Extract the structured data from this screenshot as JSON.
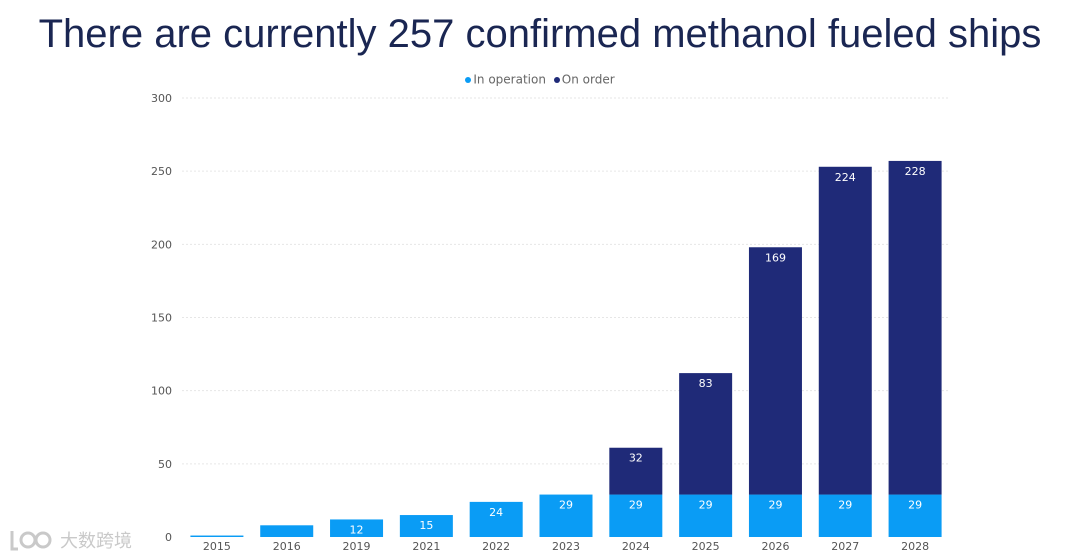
{
  "title": "There are currently 257 confirmed methanol fueled ships",
  "colors": {
    "in_operation": "#0a9cf5",
    "on_order": "#1f2a78"
  },
  "chart_data": {
    "type": "bar",
    "stacked": true,
    "categories": [
      "2015",
      "2016",
      "2019",
      "2021",
      "2022",
      "2023",
      "2024",
      "2025",
      "2026",
      "2027",
      "2028"
    ],
    "series": [
      {
        "name": "In operation",
        "values": [
          1,
          8,
          12,
          15,
          24,
          29,
          29,
          29,
          29,
          29,
          29
        ],
        "labels": [
          "",
          "",
          "12",
          "15",
          "24",
          "29",
          "29",
          "29",
          "29",
          "29",
          "29"
        ]
      },
      {
        "name": "On order",
        "values": [
          0,
          0,
          0,
          0,
          0,
          0,
          32,
          83,
          169,
          224,
          228
        ],
        "labels": [
          "",
          "",
          "",
          "",
          "",
          "",
          "32",
          "83",
          "169",
          "224",
          "228"
        ]
      }
    ],
    "ylim": [
      0,
      300
    ],
    "yticks": [
      "0",
      "50",
      "100",
      "150",
      "200",
      "250",
      "300"
    ],
    "grid": true,
    "legend_position": "top-center"
  },
  "watermark": {
    "text": "大数跨境"
  }
}
